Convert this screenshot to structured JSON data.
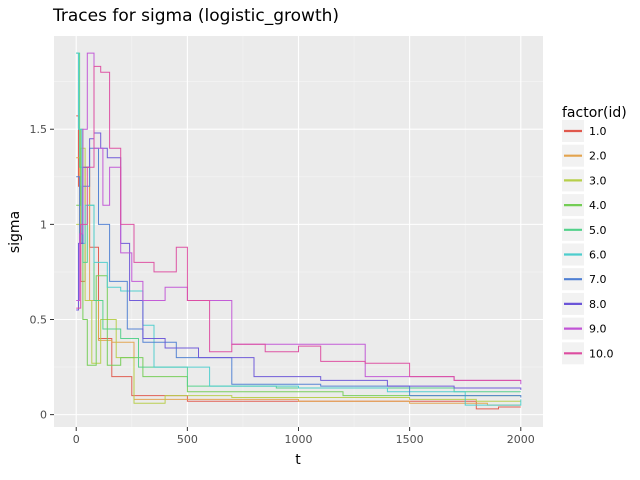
{
  "chart_data": {
    "type": "line",
    "title": "Traces for sigma (logistic_growth)",
    "xlabel": "t",
    "ylabel": "sigma",
    "xlim": [
      -100,
      2100
    ],
    "ylim": [
      -0.065,
      1.99
    ],
    "x_ticks": [
      0,
      500,
      1000,
      1500,
      2000
    ],
    "y_ticks": [
      0,
      0.5,
      1,
      1.5
    ],
    "x_tick_labels": [
      "0",
      "500",
      "1000",
      "1500",
      "2000"
    ],
    "y_tick_labels": [
      "0",
      "0.5",
      "1",
      "1.5"
    ],
    "grid": true,
    "legend_title": "factor(id)",
    "legend_position": "right",
    "series": [
      {
        "name": "1.0",
        "color": "#e0584c",
        "x": [
          0,
          10,
          20,
          40,
          60,
          100,
          160,
          250,
          500,
          1000,
          1800,
          1900,
          2000
        ],
        "y": [
          1.57,
          1.2,
          0.7,
          1.3,
          0.88,
          0.4,
          0.2,
          0.1,
          0.07,
          0.07,
          0.03,
          0.04,
          0.04
        ]
      },
      {
        "name": "2.0",
        "color": "#e3a34d",
        "x": [
          0,
          15,
          30,
          60,
          100,
          160,
          260,
          400,
          700,
          1000,
          1500,
          1850,
          2000
        ],
        "y": [
          1.35,
          0.9,
          1.3,
          0.6,
          0.39,
          0.38,
          0.08,
          0.08,
          0.08,
          0.07,
          0.06,
          0.05,
          0.05
        ]
      },
      {
        "name": "3.0",
        "color": "#b7cf4a",
        "x": [
          0,
          20,
          40,
          70,
          110,
          180,
          260,
          400,
          700,
          1000,
          1500,
          1800,
          2000
        ],
        "y": [
          1.0,
          1.4,
          0.6,
          0.27,
          0.5,
          0.3,
          0.06,
          0.1,
          0.09,
          0.09,
          0.08,
          0.07,
          0.07
        ]
      },
      {
        "name": "4.0",
        "color": "#74cd55",
        "x": [
          0,
          20,
          30,
          50,
          90,
          140,
          200,
          300,
          500,
          800,
          1200,
          1600,
          2000
        ],
        "y": [
          1.1,
          1.5,
          0.5,
          0.26,
          0.73,
          0.26,
          0.3,
          0.2,
          0.12,
          0.12,
          0.1,
          0.1,
          0.1
        ]
      },
      {
        "name": "5.0",
        "color": "#52d18a",
        "x": [
          0,
          15,
          30,
          50,
          80,
          120,
          200,
          280,
          500,
          900,
          1300,
          1700,
          2000
        ],
        "y": [
          1.9,
          1.3,
          0.8,
          1.1,
          0.6,
          0.45,
          0.4,
          0.25,
          0.15,
          0.14,
          0.14,
          0.12,
          0.12
        ]
      },
      {
        "name": "6.0",
        "color": "#4dcdcd",
        "x": [
          0,
          10,
          25,
          40,
          80,
          140,
          200,
          300,
          350,
          600,
          1000,
          1400,
          1750,
          2000
        ],
        "y": [
          1.9,
          1.5,
          0.9,
          1.1,
          0.8,
          0.67,
          0.65,
          0.47,
          0.25,
          0.15,
          0.14,
          0.12,
          0.05,
          0.08
        ]
      },
      {
        "name": "7.0",
        "color": "#4f7fd3",
        "x": [
          0,
          15,
          30,
          60,
          100,
          150,
          230,
          300,
          450,
          700,
          1100,
          1500,
          2000
        ],
        "y": [
          1.25,
          0.9,
          1.2,
          1.4,
          1.0,
          0.7,
          0.45,
          0.38,
          0.3,
          0.16,
          0.15,
          0.1,
          0.09
        ]
      },
      {
        "name": "8.0",
        "color": "#6b55d8",
        "x": [
          0,
          10,
          30,
          60,
          80,
          110,
          140,
          200,
          240,
          300,
          400,
          550,
          800,
          1100,
          1400,
          1700,
          2000
        ],
        "y": [
          0.55,
          0.9,
          1.3,
          1.45,
          1.48,
          1.4,
          1.35,
          0.9,
          0.6,
          0.4,
          0.35,
          0.3,
          0.2,
          0.18,
          0.15,
          0.14,
          0.13
        ]
      },
      {
        "name": "9.0",
        "color": "#c154d6",
        "x": [
          0,
          15,
          30,
          50,
          80,
          120,
          150,
          200,
          250,
          300,
          400,
          500,
          700,
          1000,
          1300,
          1700,
          2000
        ],
        "y": [
          0.6,
          0.95,
          1.5,
          1.9,
          1.4,
          1.1,
          1.3,
          0.85,
          0.7,
          0.6,
          0.67,
          0.6,
          0.37,
          0.37,
          0.2,
          0.18,
          0.16
        ]
      },
      {
        "name": "10.0",
        "color": "#dd4ca0",
        "x": [
          0,
          20,
          50,
          80,
          110,
          150,
          200,
          260,
          350,
          450,
          500,
          600,
          700,
          850,
          1000,
          1100,
          1300,
          1500,
          1700,
          2000
        ],
        "y": [
          0.56,
          1.0,
          1.3,
          1.83,
          1.8,
          1.4,
          1.0,
          0.8,
          0.75,
          0.88,
          0.6,
          0.33,
          0.37,
          0.33,
          0.36,
          0.28,
          0.27,
          0.2,
          0.18,
          0.18
        ]
      }
    ]
  }
}
